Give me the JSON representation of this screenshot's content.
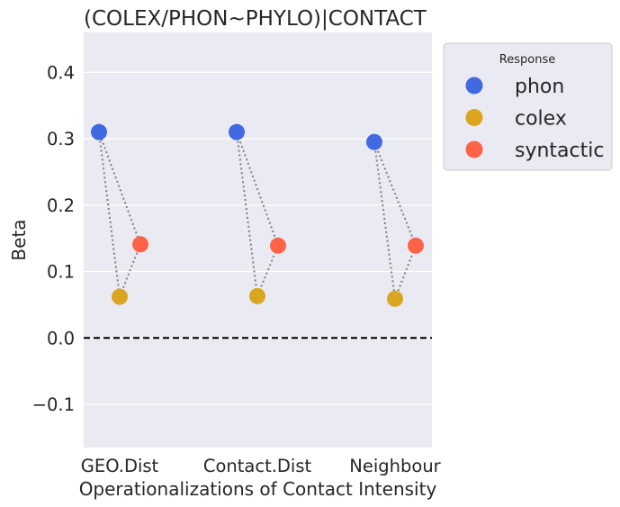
{
  "chart_data": {
    "type": "scatter",
    "title": "(COLEX/PHON~PHYLO)|CONTACT",
    "xlabel": "Operationalizations of Contact Intensity",
    "ylabel": "Beta",
    "categories": [
      "GEO.Dist",
      "Contact.Dist",
      "Neighbour"
    ],
    "ylim": [
      -0.165,
      0.46
    ],
    "yticks": [
      -0.1,
      0.0,
      0.1,
      0.2,
      0.3,
      0.4
    ],
    "ytick_labels": [
      "−0.1",
      "0.0",
      "0.1",
      "0.2",
      "0.3",
      "0.4"
    ],
    "reference_line": {
      "y": 0,
      "style": "dashed"
    },
    "grid": true,
    "legend": {
      "title": "Response",
      "placement": "outside-top-right"
    },
    "series": [
      {
        "name": "phon",
        "color": "#4169E1",
        "values": [
          0.31,
          0.31,
          0.295
        ]
      },
      {
        "name": "colex",
        "color": "#DAA520",
        "values": [
          0.062,
          0.063,
          0.059
        ]
      },
      {
        "name": "syntactic",
        "color": "#FF6347",
        "values": [
          0.141,
          0.139,
          0.139
        ]
      }
    ]
  }
}
